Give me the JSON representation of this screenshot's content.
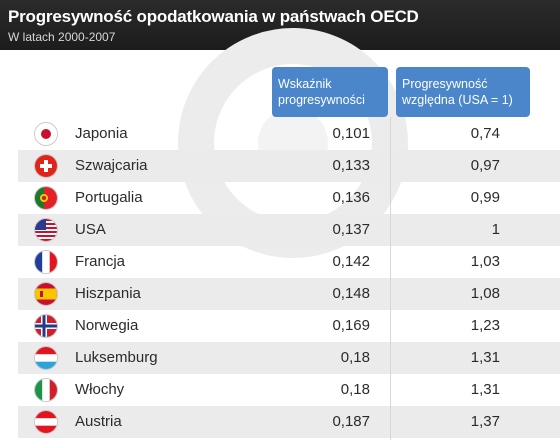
{
  "header": {
    "title": "Progresywność opodatkowania w państwach OECD",
    "subtitle": "W latach 2000-2007"
  },
  "columns": {
    "col1": [
      "Wskaźnik",
      "progresywności"
    ],
    "col2": [
      "Progresywność",
      "względna (USA = 1)"
    ]
  },
  "rows": [
    {
      "flag": "japan-flag",
      "country": "Japonia",
      "v1": "0,101",
      "v2": "0,74"
    },
    {
      "flag": "switzerland-flag",
      "country": "Szwajcaria",
      "v1": "0,133",
      "v2": "0,97"
    },
    {
      "flag": "portugal-flag",
      "country": "Portugalia",
      "v1": "0,136",
      "v2": "0,99"
    },
    {
      "flag": "usa-flag",
      "country": "USA",
      "v1": "0,137",
      "v2": "1"
    },
    {
      "flag": "france-flag",
      "country": "Francja",
      "v1": "0,142",
      "v2": "1,03"
    },
    {
      "flag": "spain-flag",
      "country": "Hiszpania",
      "v1": "0,148",
      "v2": "1,08"
    },
    {
      "flag": "norway-flag",
      "country": "Norwegia",
      "v1": "0,169",
      "v2": "1,23"
    },
    {
      "flag": "luxembourg-flag",
      "country": "Luksemburg",
      "v1": "0,18",
      "v2": "1,31"
    },
    {
      "flag": "italy-flag",
      "country": "Włochy",
      "v1": "0,18",
      "v2": "1,31"
    },
    {
      "flag": "austria-flag",
      "country": "Austria",
      "v1": "0,187",
      "v2": "1,37"
    }
  ],
  "colors": {
    "header_bg": "#222222",
    "column_header_bg": "#4a86c9",
    "stripe": "#ebebeb"
  }
}
